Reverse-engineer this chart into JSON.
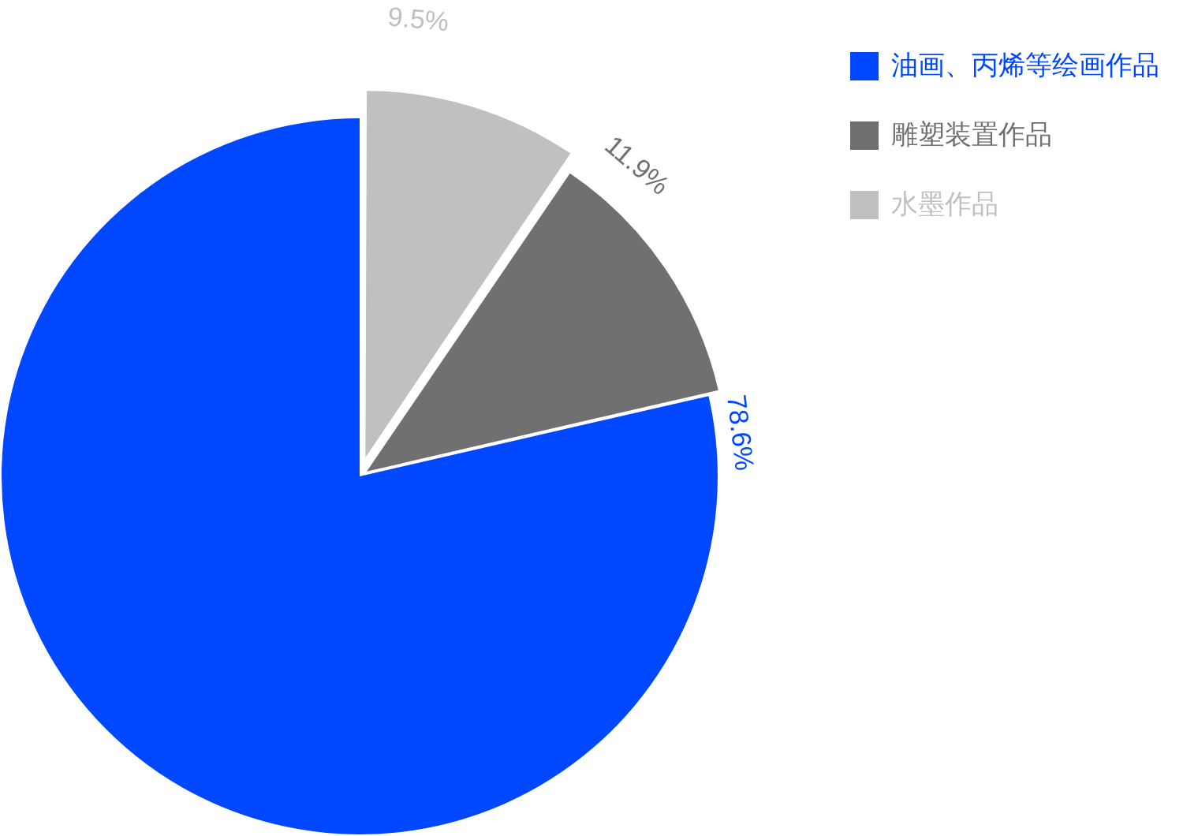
{
  "chart_data": {
    "type": "pie",
    "categories": [
      "油画、丙烯等绘画作品",
      "雕塑装置作品",
      "水墨作品"
    ],
    "values": [
      78.6,
      11.9,
      9.5
    ],
    "colors": [
      "#0048ff",
      "#707070",
      "#c0c0c0"
    ],
    "value_labels": [
      "78.6%",
      "11.9%",
      "9.5%"
    ],
    "legend": "top right"
  }
}
